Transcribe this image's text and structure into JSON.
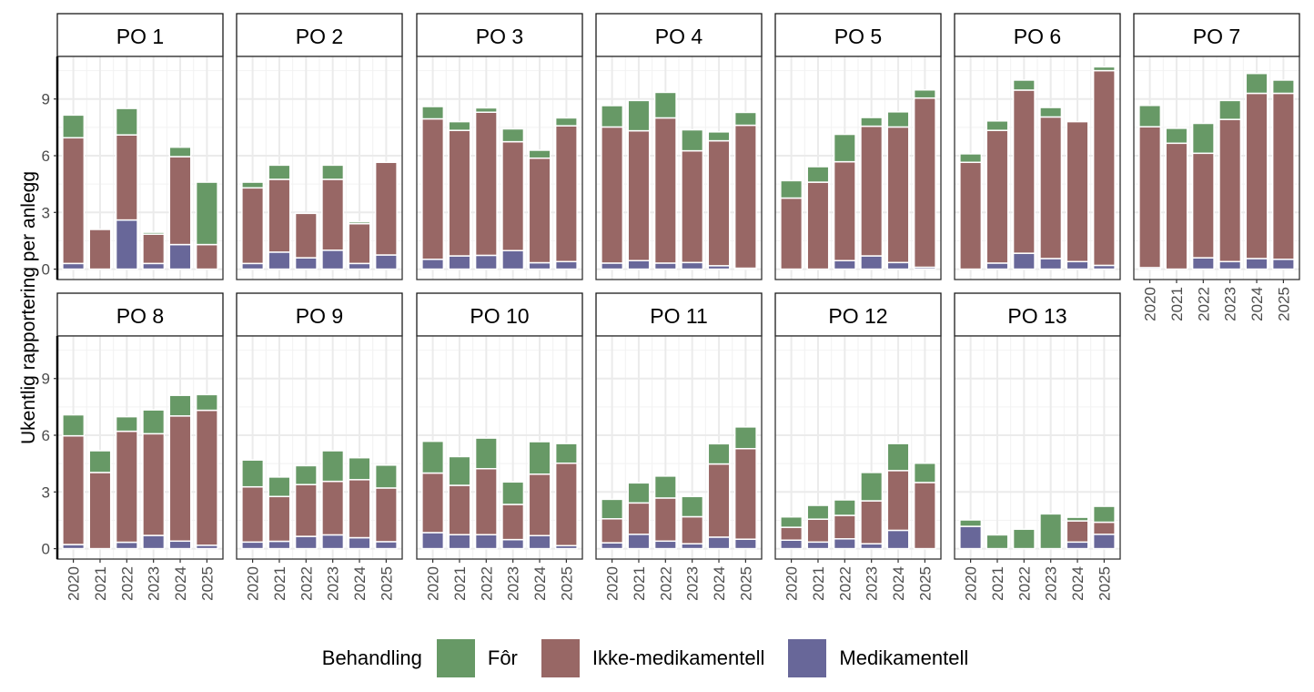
{
  "chart_data": {
    "type": "bar",
    "stacked": true,
    "ylabel": "Ukentlig rapportering per anlegg",
    "xlabel": "",
    "ylim": [
      -0.55,
      11.25
    ],
    "yticks": [
      "0",
      "3",
      "6",
      "9"
    ],
    "grid": true,
    "legend_position": "bottom",
    "legend_title": "Behandling",
    "categories": [
      "2020",
      "2021",
      "2022",
      "2023",
      "2024",
      "2025"
    ],
    "series_order": [
      "Medikamentell",
      "Ikke-medikamentell",
      "Fôr"
    ],
    "legend": [
      {
        "name": "Fôr",
        "color": "#679966"
      },
      {
        "name": "Ikke-medikamentell",
        "color": "#986765"
      },
      {
        "name": "Medikamentell",
        "color": "#686799"
      }
    ],
    "panels": [
      {
        "title": "PO 1",
        "Medikamentell": [
          0.3,
          0,
          2.6,
          0.3,
          1.3,
          0
        ],
        "Ikke-medikamentell": [
          6.65,
          2.1,
          4.5,
          1.55,
          4.65,
          1.3
        ],
        "Fôr": [
          1.2,
          0,
          1.4,
          0.1,
          0.5,
          3.3
        ]
      },
      {
        "title": "PO 2",
        "Medikamentell": [
          0.3,
          0.9,
          0.6,
          1.0,
          0.3,
          0.75
        ],
        "Ikke-medikamentell": [
          4.0,
          3.85,
          2.35,
          3.75,
          2.1,
          4.9
        ],
        "Fôr": [
          0.3,
          0.75,
          0,
          0.75,
          0.1,
          0
        ]
      },
      {
        "title": "PO 3",
        "Medikamentell": [
          0.52,
          0.7,
          0.73,
          0.98,
          0.34,
          0.4
        ],
        "Ikke-medikamentell": [
          7.43,
          6.64,
          7.57,
          5.76,
          5.53,
          7.18
        ],
        "Fôr": [
          0.65,
          0.46,
          0.23,
          0.68,
          0.42,
          0.42
        ]
      },
      {
        "title": "PO 4",
        "Medikamentell": [
          0.32,
          0.45,
          0.32,
          0.35,
          0.18,
          0.05
        ],
        "Ikke-medikamentell": [
          7.2,
          6.87,
          7.68,
          5.91,
          6.61,
          7.56
        ],
        "Fôr": [
          1.13,
          1.6,
          1.35,
          1.11,
          0.47,
          0.68
        ]
      },
      {
        "title": "PO 5",
        "Medikamentell": [
          0,
          0,
          0.45,
          0.7,
          0.35,
          0.1
        ],
        "Ikke-medikamentell": [
          3.76,
          4.6,
          5.23,
          6.86,
          7.17,
          8.95
        ],
        "Fôr": [
          0.92,
          0.82,
          1.45,
          0.46,
          0.8,
          0.43
        ]
      },
      {
        "title": "PO 6",
        "Medikamentell": [
          0,
          0.32,
          0.84,
          0.56,
          0.4,
          0.2
        ],
        "Ikke-medikamentell": [
          5.65,
          7.02,
          8.63,
          7.49,
          7.4,
          10.3
        ],
        "Fôr": [
          0.45,
          0.5,
          0.53,
          0.5,
          0,
          0.2
        ]
      },
      {
        "title": "PO 7",
        "Medikamentell": [
          0.08,
          0,
          0.6,
          0.4,
          0.56,
          0.52
        ],
        "Ikke-medikamentell": [
          7.45,
          6.66,
          5.53,
          7.52,
          8.74,
          8.78
        ],
        "Fôr": [
          1.13,
          0.79,
          1.58,
          1.0,
          1.05,
          0.7
        ]
      },
      {
        "title": "PO 8",
        "Medikamentell": [
          0.22,
          0,
          0.34,
          0.7,
          0.4,
          0.18
        ],
        "Ikke-medikamentell": [
          5.75,
          4.03,
          5.87,
          5.38,
          6.62,
          7.14
        ],
        "Fôr": [
          1.11,
          1.15,
          0.77,
          1.26,
          1.09,
          0.83
        ]
      },
      {
        "title": "PO 9",
        "Medikamentell": [
          0.35,
          0.39,
          0.65,
          0.73,
          0.58,
          0.37
        ],
        "Ikke-medikamentell": [
          2.92,
          2.37,
          2.74,
          2.83,
          3.07,
          2.84
        ],
        "Fôr": [
          1.42,
          1.03,
          1.0,
          1.62,
          1.16,
          1.21
        ]
      },
      {
        "title": "PO 10",
        "Medikamentell": [
          0.85,
          0.74,
          0.74,
          0.48,
          0.69,
          0.16
        ],
        "Ikke-medikamentell": [
          3.15,
          2.61,
          3.49,
          1.86,
          3.25,
          4.36
        ],
        "Fôr": [
          1.68,
          1.52,
          1.62,
          1.19,
          1.72,
          1.04
        ]
      },
      {
        "title": "PO 11",
        "Medikamentell": [
          0.31,
          0.76,
          0.4,
          0.26,
          0.61,
          0.5
        ],
        "Ikke-medikamentell": [
          1.27,
          1.66,
          2.28,
          1.43,
          3.87,
          4.79
        ],
        "Fôr": [
          1.03,
          1.06,
          1.16,
          1.07,
          1.07,
          1.15
        ]
      },
      {
        "title": "PO 12",
        "Medikamentell": [
          0.45,
          0.35,
          0.52,
          0.26,
          0.97,
          0
        ],
        "Ikke-medikamentell": [
          0.68,
          1.21,
          1.24,
          2.27,
          3.16,
          3.5
        ],
        "Fôr": [
          0.55,
          0.73,
          0.82,
          1.5,
          1.43,
          1.02
        ]
      },
      {
        "title": "PO 13",
        "Medikamentell": [
          1.18,
          0,
          0,
          0,
          0.35,
          0.76
        ],
        "Ikke-medikamentell": [
          0,
          0,
          0,
          0,
          1.12,
          0.64
        ],
        "Fôr": [
          0.34,
          0.73,
          1.03,
          1.84,
          0.19,
          0.84
        ]
      }
    ]
  }
}
